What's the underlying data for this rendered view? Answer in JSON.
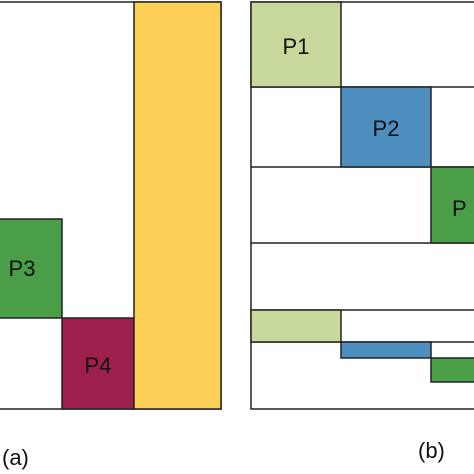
{
  "colors": {
    "p1": "#c6d89b",
    "p2": "#4f8fbf",
    "p3": "#4a9e48",
    "p4": "#9c1f4d",
    "tall_block": "#fccf57",
    "outline": "#222222",
    "background": "#ffffff"
  },
  "panel_a": {
    "label": "(a)",
    "blocks": {
      "p3": "P3",
      "p4": "P4"
    }
  },
  "panel_b": {
    "label": "(b)",
    "blocks": {
      "p1": "P1",
      "p2": "P2",
      "p3_partial": "P"
    }
  }
}
